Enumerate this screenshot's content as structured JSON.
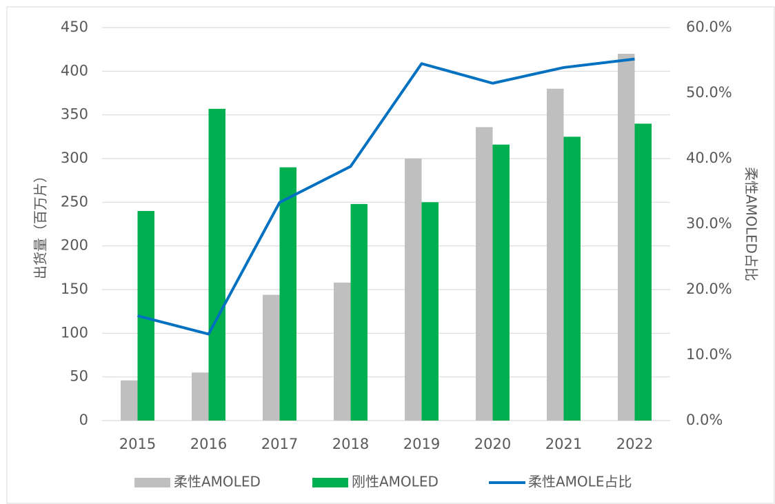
{
  "chart_data": {
    "type": "bar-line",
    "categories": [
      "2015",
      "2016",
      "2017",
      "2018",
      "2019",
      "2020",
      "2021",
      "2022"
    ],
    "series": [
      {
        "name": "柔性AMOLED",
        "type": "bar",
        "color": "#bfbfbf",
        "values": [
          46,
          55,
          144,
          158,
          300,
          336,
          380,
          420
        ]
      },
      {
        "name": "刚性AMOLED",
        "type": "bar",
        "color": "#00b050",
        "values": [
          240,
          357,
          290,
          248,
          250,
          316,
          325,
          340
        ]
      },
      {
        "name": "柔性AMOLE占比",
        "type": "line",
        "axis": "y2",
        "color": "#0070c0",
        "values": [
          16.0,
          13.2,
          33.3,
          38.8,
          54.5,
          51.5,
          53.9,
          55.2
        ]
      }
    ],
    "ylabel": "出货量（百万片）",
    "y2label": "柔性AMOLED占比",
    "ylim": [
      0,
      450
    ],
    "yticks": [
      0,
      50,
      100,
      150,
      200,
      250,
      300,
      350,
      400,
      450
    ],
    "y2lim": [
      0,
      60
    ],
    "y2ticks": [
      {
        "value": 0,
        "label": "0.0%"
      },
      {
        "value": 10,
        "label": "10.0%"
      },
      {
        "value": 20,
        "label": "20.0%"
      },
      {
        "value": 30,
        "label": "30.0%"
      },
      {
        "value": 40,
        "label": "40.0%"
      },
      {
        "value": 50,
        "label": "50.0%"
      },
      {
        "value": 60,
        "label": "60.0%"
      }
    ],
    "grid": true,
    "legend": "bottom"
  }
}
